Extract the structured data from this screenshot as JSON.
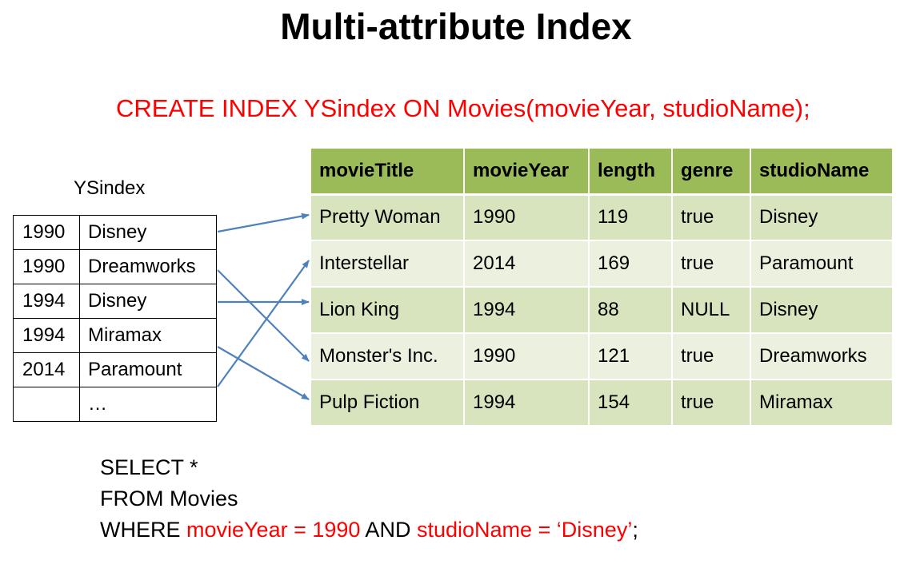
{
  "title": "Multi-attribute Index",
  "create_statement": "CREATE INDEX YSindex ON Movies(movieYear, studioName);",
  "index": {
    "label": "YSindex",
    "rows": [
      {
        "year": "1990",
        "studio": "Disney"
      },
      {
        "year": "1990",
        "studio": "Dreamworks"
      },
      {
        "year": "1994",
        "studio": "Disney"
      },
      {
        "year": "1994",
        "studio": "Miramax"
      },
      {
        "year": "2014",
        "studio": "Paramount"
      },
      {
        "year": "",
        "studio": "…"
      }
    ]
  },
  "movies": {
    "headers": [
      "movieTitle",
      "movieYear",
      "length",
      "genre",
      "studioName"
    ],
    "rows": [
      [
        "Pretty Woman",
        "1990",
        "119",
        "true",
        "Disney"
      ],
      [
        "Interstellar",
        "2014",
        "169",
        "true",
        "Paramount"
      ],
      [
        "Lion King",
        "1994",
        "88",
        "NULL",
        "Disney"
      ],
      [
        "Monster's Inc.",
        "1990",
        "121",
        "true",
        "Dreamworks"
      ],
      [
        "Pulp Fiction",
        "1994",
        "154",
        "true",
        "Miramax"
      ]
    ]
  },
  "query": {
    "line1": "SELECT *",
    "line2": "FROM Movies",
    "line3_prefix": "WHERE ",
    "line3_cond1": "movieYear = 1990",
    "line3_and": " AND ",
    "line3_cond2": "studioName = ‘Disney’",
    "line3_suffix": ";"
  },
  "colors": {
    "highlight": "#ff0000",
    "header_bg": "#9bbb59",
    "row_odd": "#d7e4bd",
    "row_even": "#ebf1de",
    "arrow": "#4f81bd"
  }
}
